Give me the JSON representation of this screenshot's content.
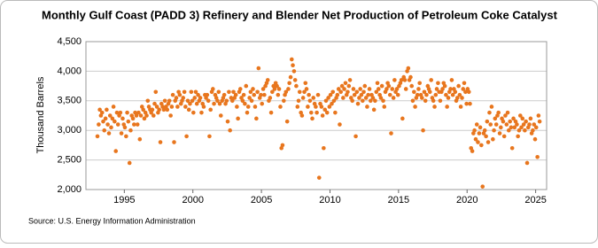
{
  "chart_data": {
    "type": "scatter",
    "title": "Monthly Gulf Coast (PADD 3) Refinery and Blender Net Production of Petroleum Coke Catalyst",
    "y_label": "Thousand Barrels",
    "source": "Source: U.S. Energy Information Administration",
    "color": "#e8761e",
    "grid": true,
    "xlim": [
      1992.2,
      2025.8
    ],
    "xticks": [
      1995,
      2000,
      2005,
      2010,
      2015,
      2020,
      2025
    ],
    "ylim": [
      2000,
      4500
    ],
    "yticks": [
      {
        "value": 2000,
        "label": "2,000"
      },
      {
        "value": 2500,
        "label": "2,500"
      },
      {
        "value": 3000,
        "label": "3,000"
      },
      {
        "value": 3500,
        "label": "3,500"
      },
      {
        "value": 4000,
        "label": "4,000"
      },
      {
        "value": 4500,
        "label": "4,500"
      }
    ],
    "x": [
      1993.04,
      1993.13,
      1993.21,
      1993.29,
      1993.38,
      1993.46,
      1993.54,
      1993.63,
      1993.71,
      1993.79,
      1993.88,
      1993.96,
      1994.04,
      1994.13,
      1994.21,
      1994.29,
      1994.38,
      1994.46,
      1994.54,
      1994.63,
      1994.71,
      1994.79,
      1994.88,
      1994.96,
      1995.04,
      1995.13,
      1995.21,
      1995.29,
      1995.38,
      1995.46,
      1995.54,
      1995.63,
      1995.71,
      1995.79,
      1995.88,
      1995.96,
      1996.04,
      1996.13,
      1996.21,
      1996.29,
      1996.38,
      1996.46,
      1996.54,
      1996.63,
      1996.71,
      1996.79,
      1996.88,
      1996.96,
      1997.04,
      1997.13,
      1997.21,
      1997.29,
      1997.38,
      1997.46,
      1997.54,
      1997.63,
      1997.71,
      1997.79,
      1997.88,
      1997.96,
      1998.04,
      1998.13,
      1998.21,
      1998.29,
      1998.38,
      1998.46,
      1998.54,
      1998.63,
      1998.71,
      1998.79,
      1998.88,
      1998.96,
      1999.04,
      1999.13,
      1999.21,
      1999.29,
      1999.38,
      1999.46,
      1999.54,
      1999.63,
      1999.71,
      1999.79,
      1999.88,
      1999.96,
      2000.04,
      2000.13,
      2000.21,
      2000.29,
      2000.38,
      2000.46,
      2000.54,
      2000.63,
      2000.71,
      2000.79,
      2000.88,
      2000.96,
      2001.04,
      2001.13,
      2001.21,
      2001.29,
      2001.38,
      2001.46,
      2001.54,
      2001.63,
      2001.71,
      2001.79,
      2001.88,
      2001.96,
      2002.04,
      2002.13,
      2002.21,
      2002.29,
      2002.38,
      2002.46,
      2002.54,
      2002.63,
      2002.71,
      2002.79,
      2002.88,
      2002.96,
      2003.04,
      2003.13,
      2003.21,
      2003.29,
      2003.38,
      2003.46,
      2003.54,
      2003.63,
      2003.71,
      2003.79,
      2003.88,
      2003.96,
      2004.04,
      2004.13,
      2004.21,
      2004.29,
      2004.38,
      2004.46,
      2004.54,
      2004.63,
      2004.71,
      2004.79,
      2004.88,
      2004.96,
      2005.04,
      2005.13,
      2005.21,
      2005.29,
      2005.38,
      2005.46,
      2005.54,
      2005.63,
      2005.71,
      2005.79,
      2005.88,
      2005.96,
      2006.04,
      2006.13,
      2006.21,
      2006.29,
      2006.38,
      2006.46,
      2006.54,
      2006.63,
      2006.71,
      2006.79,
      2006.88,
      2006.96,
      2007.04,
      2007.13,
      2007.21,
      2007.29,
      2007.38,
      2007.46,
      2007.54,
      2007.63,
      2007.71,
      2007.79,
      2007.88,
      2007.96,
      2008.04,
      2008.13,
      2008.21,
      2008.29,
      2008.38,
      2008.46,
      2008.54,
      2008.63,
      2008.71,
      2008.79,
      2008.88,
      2008.96,
      2009.04,
      2009.13,
      2009.21,
      2009.29,
      2009.38,
      2009.46,
      2009.54,
      2009.63,
      2009.71,
      2009.79,
      2009.88,
      2009.96,
      2010.04,
      2010.13,
      2010.21,
      2010.29,
      2010.38,
      2010.46,
      2010.54,
      2010.63,
      2010.71,
      2010.79,
      2010.88,
      2010.96,
      2011.04,
      2011.13,
      2011.21,
      2011.29,
      2011.38,
      2011.46,
      2011.54,
      2011.63,
      2011.71,
      2011.79,
      2011.88,
      2011.96,
      2012.04,
      2012.13,
      2012.21,
      2012.29,
      2012.38,
      2012.46,
      2012.54,
      2012.63,
      2012.71,
      2012.79,
      2012.88,
      2012.96,
      2013.04,
      2013.13,
      2013.21,
      2013.29,
      2013.38,
      2013.46,
      2013.54,
      2013.63,
      2013.71,
      2013.79,
      2013.88,
      2013.96,
      2014.04,
      2014.13,
      2014.21,
      2014.29,
      2014.38,
      2014.46,
      2014.54,
      2014.63,
      2014.71,
      2014.79,
      2014.88,
      2014.96,
      2015.04,
      2015.13,
      2015.21,
      2015.29,
      2015.38,
      2015.46,
      2015.54,
      2015.63,
      2015.71,
      2015.79,
      2015.88,
      2015.96,
      2016.04,
      2016.13,
      2016.21,
      2016.29,
      2016.38,
      2016.46,
      2016.54,
      2016.63,
      2016.71,
      2016.79,
      2016.88,
      2016.96,
      2017.04,
      2017.13,
      2017.21,
      2017.29,
      2017.38,
      2017.46,
      2017.54,
      2017.63,
      2017.71,
      2017.79,
      2017.88,
      2017.96,
      2018.04,
      2018.13,
      2018.21,
      2018.29,
      2018.38,
      2018.46,
      2018.54,
      2018.63,
      2018.71,
      2018.79,
      2018.88,
      2018.96,
      2019.04,
      2019.13,
      2019.21,
      2019.29,
      2019.38,
      2019.46,
      2019.54,
      2019.63,
      2019.71,
      2019.79,
      2019.88,
      2019.96,
      2020.04,
      2020.13,
      2020.21,
      2020.29,
      2020.38,
      2020.46,
      2020.54,
      2020.63,
      2020.71,
      2020.79,
      2020.88,
      2020.96,
      2021.04,
      2021.13,
      2021.21,
      2021.29,
      2021.38,
      2021.46,
      2021.54,
      2021.63,
      2021.71,
      2021.79,
      2021.88,
      2021.96,
      2022.04,
      2022.13,
      2022.21,
      2022.29,
      2022.38,
      2022.46,
      2022.54,
      2022.63,
      2022.71,
      2022.79,
      2022.88,
      2022.96,
      2023.04,
      2023.13,
      2023.21,
      2023.29,
      2023.38,
      2023.46,
      2023.54,
      2023.63,
      2023.71,
      2023.79,
      2023.88,
      2023.96,
      2024.04,
      2024.13,
      2024.21,
      2024.29,
      2024.38,
      2024.46,
      2024.54,
      2024.63,
      2024.71,
      2024.79,
      2024.88,
      2024.96,
      2025.04,
      2025.13,
      2025.21,
      2025.29
    ],
    "values": [
      2900,
      3100,
      3350,
      3250,
      3300,
      3150,
      3000,
      3200,
      3350,
      3100,
      2950,
      3250,
      3050,
      3200,
      3400,
      3150,
      2650,
      3300,
      3100,
      3250,
      3300,
      2950,
      3200,
      3100,
      3050,
      2900,
      3300,
      3150,
      2450,
      3000,
      3250,
      3200,
      3100,
      3300,
      3250,
      3100,
      3300,
      2850,
      3250,
      3400,
      3350,
      3200,
      3300,
      3250,
      3500,
      3400,
      3350,
      3300,
      3350,
      3250,
      3450,
      3650,
      3400,
      3300,
      3350,
      2800,
      3450,
      3400,
      3350,
      3500,
      3400,
      3350,
      3450,
      3500,
      3250,
      3400,
      3600,
      2800,
      3500,
      3550,
      3400,
      3650,
      3600,
      3450,
      3500,
      3550,
      3650,
      3400,
      2900,
      3500,
      3350,
      3450,
      3650,
      3500,
      3300,
      3550,
      3650,
      3450,
      3600,
      3500,
      3550,
      3300,
      3450,
      3400,
      3600,
      3550,
      3600,
      3500,
      2900,
      3350,
      3650,
      3700,
      3450,
      3600,
      3550,
      3500,
      3650,
      3450,
      3250,
      3500,
      3550,
      3600,
      3450,
      3500,
      3150,
      3650,
      3000,
      3550,
      3500,
      3650,
      3550,
      3600,
      3400,
      3200,
      3650,
      3700,
      3550,
      3500,
      3600,
      3450,
      3750,
      3300,
      3400,
      3550,
      3650,
      3500,
      3700,
      3600,
      3400,
      3200,
      3650,
      4050,
      3550,
      3600,
      3450,
      3700,
      3600,
      3750,
      3800,
      3850,
      3500,
      3550,
      3300,
      3650,
      3750,
      3700,
      3800,
      3750,
      3600,
      3700,
      3400,
      2700,
      2750,
      3500,
      3600,
      3650,
      3150,
      3700,
      3800,
      3900,
      4200,
      4100,
      4000,
      3850,
      3750,
      3400,
      3500,
      3650,
      3300,
      3250,
      3550,
      3650,
      3800,
      3700,
      3400,
      3600,
      3500,
      3300,
      3200,
      3550,
      3450,
      3400,
      3300,
      3600,
      2200,
      3450,
      3400,
      3250,
      2700,
      3350,
      3500,
      3300,
      3550,
      3400,
      3600,
      3450,
      3650,
      3500,
      3300,
      3550,
      3600,
      3700,
      3100,
      3650,
      3750,
      3550,
      3700,
      3800,
      3600,
      3650,
      3750,
      3850,
      3550,
      3500,
      3700,
      3600,
      2900,
      3650,
      3450,
      3550,
      3700,
      3600,
      3500,
      3650,
      3750,
      3550,
      3400,
      3600,
      3700,
      3500,
      3600,
      3550,
      3350,
      3500,
      3650,
      3800,
      3700,
      3600,
      3550,
      3750,
      3500,
      3400,
      3650,
      3700,
      3800,
      3750,
      3600,
      2950,
      3700,
      3550,
      3850,
      3650,
      3700,
      3600,
      3750,
      3800,
      3850,
      3200,
      3900,
      3850,
      3700,
      4000,
      4050,
      3850,
      3900,
      3750,
      3500,
      3650,
      3400,
      3550,
      3600,
      3700,
      3800,
      3600,
      3550,
      3000,
      3650,
      3500,
      3600,
      3750,
      3700,
      3650,
      3850,
      3550,
      3500,
      3400,
      3600,
      3700,
      3800,
      3650,
      3500,
      3650,
      3700,
      3800,
      3750,
      3600,
      3400,
      3550,
      3650,
      3700,
      3850,
      3600,
      3700,
      3650,
      3500,
      3550,
      3750,
      3600,
      3400,
      3550,
      3700,
      3800,
      3650,
      3450,
      3700,
      3650,
      3450,
      2700,
      2650,
      2950,
      3000,
      2850,
      3100,
      2800,
      2950,
      3050,
      2750,
      2050,
      2950,
      3000,
      2900,
      3150,
      2800,
      3300,
      3100,
      3400,
      2850,
      3000,
      3200,
      3100,
      3250,
      3300,
      2950,
      3050,
      3200,
      3150,
      2900,
      3250,
      3100,
      3300,
      3000,
      3150,
      3050,
      2700,
      3200,
      3050,
      3150,
      3100,
      2900,
      3000,
      3250,
      3050,
      3200,
      3100,
      3000,
      3150,
      2450,
      3050,
      3100,
      3200,
      2950,
      3000,
      3100,
      2850,
      3050,
      2550,
      3250,
      3150
    ]
  }
}
